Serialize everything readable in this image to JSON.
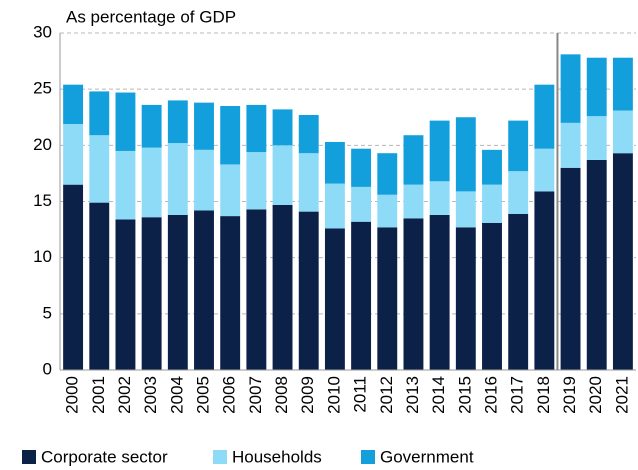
{
  "chart_data": {
    "type": "stacked_bar",
    "title": "As percentage of GDP",
    "categories": [
      "2000",
      "2001",
      "2002",
      "2003",
      "2004",
      "2005",
      "2006",
      "2007",
      "2008",
      "2009",
      "2010",
      "2011",
      "2012",
      "2013",
      "2014",
      "2015",
      "2016",
      "2017",
      "2018",
      "2019",
      "2020",
      "2021"
    ],
    "series": [
      {
        "name": "Corporate sector",
        "color": "#0c2148",
        "values": [
          16.5,
          14.9,
          13.4,
          13.6,
          13.8,
          14.2,
          13.7,
          14.3,
          14.7,
          14.1,
          12.6,
          13.2,
          12.7,
          13.5,
          13.8,
          12.7,
          13.1,
          13.9,
          15.9,
          18.0,
          18.7,
          19.3
        ]
      },
      {
        "name": "Households",
        "color": "#8edbf8",
        "values": [
          5.4,
          6.0,
          6.1,
          6.2,
          6.4,
          5.4,
          4.6,
          5.1,
          5.3,
          5.2,
          4.0,
          3.1,
          2.9,
          3.0,
          3.0,
          3.2,
          3.4,
          3.8,
          3.8,
          4.0,
          3.9,
          3.8
        ]
      },
      {
        "name": "Government",
        "color": "#139fdb",
        "values": [
          3.5,
          3.9,
          5.2,
          3.8,
          3.8,
          4.2,
          5.2,
          4.2,
          3.2,
          3.4,
          3.7,
          3.4,
          3.7,
          4.4,
          5.4,
          6.6,
          3.1,
          4.5,
          5.7,
          6.1,
          5.2,
          4.7
        ]
      }
    ],
    "ylim": [
      0,
      30
    ],
    "yticks": [
      0,
      5,
      10,
      15,
      20,
      25,
      30
    ],
    "grid": true,
    "legend": "bottom"
  }
}
